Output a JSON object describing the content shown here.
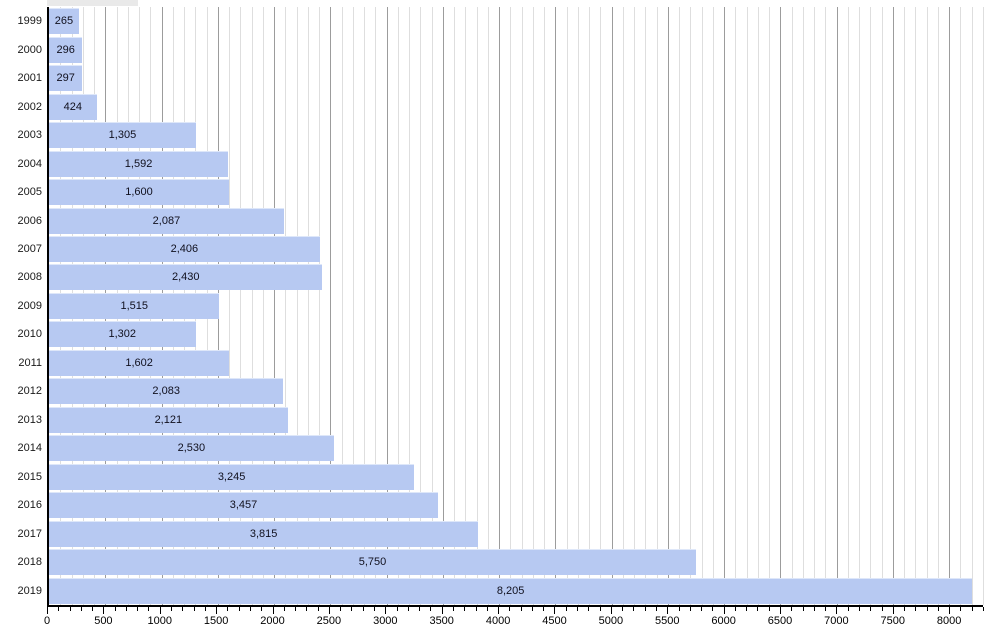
{
  "chart_data": {
    "type": "bar",
    "orientation": "horizontal",
    "title": "",
    "xlabel": "",
    "ylabel": "",
    "categories": [
      "1999",
      "2000",
      "2001",
      "2002",
      "2003",
      "2004",
      "2005",
      "2006",
      "2007",
      "2008",
      "2009",
      "2010",
      "2011",
      "2012",
      "2013",
      "2014",
      "2015",
      "2016",
      "2017",
      "2018",
      "2019"
    ],
    "values": [
      265,
      296,
      297,
      424,
      1305,
      1592,
      1600,
      2087,
      2406,
      2430,
      1515,
      1302,
      1602,
      2083,
      2121,
      2530,
      3245,
      3457,
      3815,
      5750,
      8205
    ],
    "value_labels": [
      "265",
      "296",
      "297",
      "424",
      "1,305",
      "1,592",
      "1,600",
      "2,087",
      "2,406",
      "2,430",
      "1,515",
      "1,302",
      "1,602",
      "2,083",
      "2,121",
      "2,530",
      "3,245",
      "3,457",
      "3,815",
      "5,750",
      "8,205"
    ],
    "xlim": [
      0,
      8300
    ],
    "x_major_tick_step": 500,
    "x_minor_tick_step": 100,
    "x_tick_labels": [
      "0",
      "500",
      "1000",
      "1500",
      "2000",
      "2500",
      "3000",
      "3500",
      "4000",
      "4500",
      "5000",
      "5500",
      "6000",
      "6500",
      "7000",
      "7500",
      "8000"
    ],
    "grid": {
      "vertical_minor": true,
      "vertical_major": true,
      "horizontal": false
    },
    "legend": null,
    "colors": {
      "bar_fill": "#b7c9f2",
      "bar_label": "#10101e",
      "axis_line": "#000000",
      "tick_label": "#000000",
      "category_label": "#1a1a1a",
      "grid_minor": "#dedede",
      "grid_major": "#9c9c9c",
      "artifact_strip": "#e9e9e9"
    }
  }
}
